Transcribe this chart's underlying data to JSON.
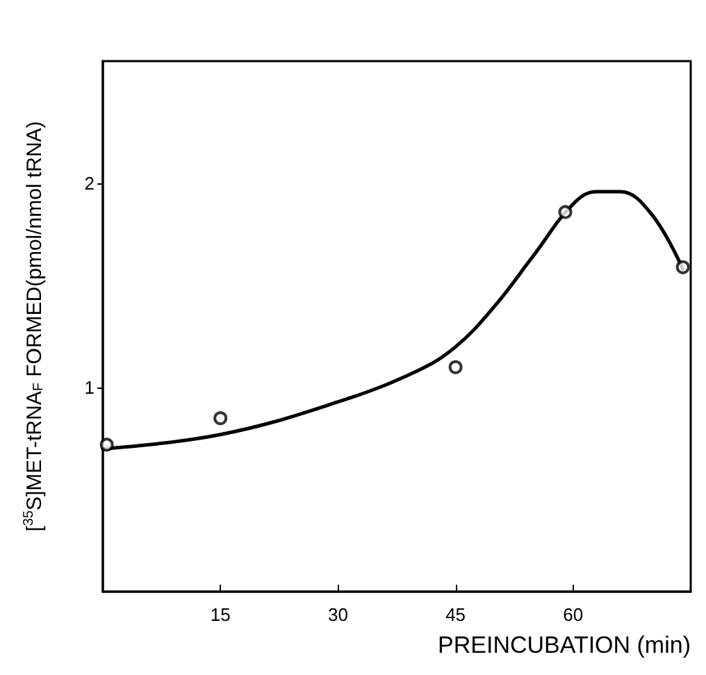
{
  "chart_data": {
    "type": "scatter",
    "xlabel": "PREINCUBATION (min)",
    "ylabel": "[$^{35}$S]MET-tRNA$_{F}$ FORMED(pmol/nmol tRNA)",
    "xlim": [
      0,
      75
    ],
    "ylim": [
      0,
      2.6
    ],
    "xticks": [
      15,
      30,
      45,
      60
    ],
    "yticks": [
      1,
      2
    ],
    "grid": false,
    "series": [
      {
        "color": "#000000",
        "marker": "circle",
        "x": [
          0.5,
          15,
          45,
          59,
          74
        ],
        "values": [
          0.72,
          0.85,
          1.1,
          1.86,
          1.59
        ]
      },
      {
        "type": "line",
        "color": "#000000",
        "marker": "none",
        "line_style": "solid",
        "x": [
          0,
          15,
          30,
          40,
          45,
          50,
          55,
          60,
          63,
          66,
          70,
          74
        ],
        "values": [
          0.7,
          0.77,
          0.93,
          1.08,
          1.2,
          1.4,
          1.65,
          1.9,
          1.96,
          1.96,
          1.85,
          1.58
        ]
      }
    ]
  }
}
